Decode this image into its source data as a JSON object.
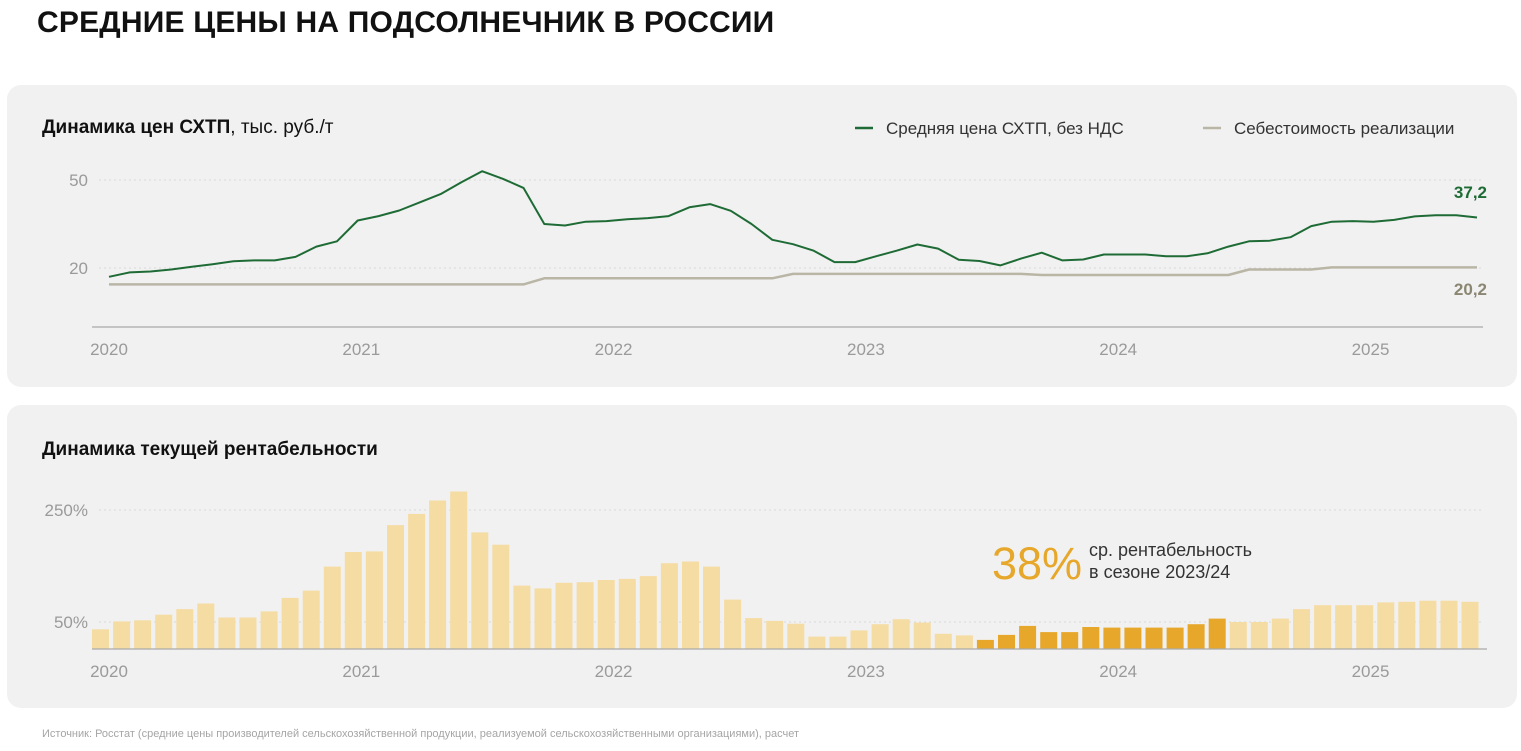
{
  "title": "СРЕДНИЕ ЦЕНЫ НА ПОДСОЛНЕЧНИК В РОССИИ",
  "source": "Источник: Росстат (средние цены производителей сельскохозяйственной продукции, реализуемой сельскохозяйственными организациями), расчет",
  "colors": {
    "price_line": "#1e6b35",
    "cost_line": "#b9b6a6",
    "bar_light": "#f5dca3",
    "bar_highlight": "#e6a72a",
    "axis": "#aaaaaa",
    "grid": "#d9d9d9",
    "tick_text": "#9a9a9a",
    "cost_label": "#8a8672"
  },
  "chart_data": [
    {
      "type": "line",
      "title": "Динамика цен СХТП",
      "title_unit": ", тыс. руб./т",
      "legend_position": "top-right",
      "x_range": [
        "2020-01",
        "2025-06"
      ],
      "ylim": [
        0,
        55
      ],
      "yticks": [
        "50",
        "20"
      ],
      "ytick_values": [
        50,
        20
      ],
      "xticks": [
        "2020",
        "2021",
        "2022",
        "2023",
        "2024",
        "2025"
      ],
      "end_labels": {
        "price": "37,2",
        "cost": "20,2"
      },
      "series": [
        {
          "name": "Средняя цена СХТП, без НДС",
          "key": "price",
          "points": [
            [
              "2020-01",
              17.0
            ],
            [
              "2020-02",
              18.5
            ],
            [
              "2020-03",
              18.8
            ],
            [
              "2020-04",
              19.5
            ],
            [
              "2020-05",
              20.4
            ],
            [
              "2020-06",
              21.3
            ],
            [
              "2020-07",
              22.3
            ],
            [
              "2020-08",
              22.6
            ],
            [
              "2020-09",
              22.6
            ],
            [
              "2020-10",
              23.8
            ],
            [
              "2020-11",
              27.3
            ],
            [
              "2020-12",
              29.1
            ],
            [
              "2021-01",
              36.2
            ],
            [
              "2021-02",
              37.7
            ],
            [
              "2021-03",
              39.6
            ],
            [
              "2021-04",
              42.4
            ],
            [
              "2021-05",
              45.2
            ],
            [
              "2021-06",
              49.2
            ],
            [
              "2021-07",
              53.0
            ],
            [
              "2021-08",
              50.4
            ],
            [
              "2021-09",
              47.3
            ],
            [
              "2021-10",
              35.0
            ],
            [
              "2021-11",
              34.5
            ],
            [
              "2021-12",
              35.8
            ],
            [
              "2022-01",
              36.0
            ],
            [
              "2022-02",
              36.6
            ],
            [
              "2022-03",
              37.0
            ],
            [
              "2022-04",
              37.7
            ],
            [
              "2022-05",
              40.7
            ],
            [
              "2022-06",
              41.8
            ],
            [
              "2022-07",
              39.5
            ],
            [
              "2022-08",
              35.0
            ],
            [
              "2022-09",
              29.6
            ],
            [
              "2022-10",
              28.1
            ],
            [
              "2022-11",
              25.9
            ],
            [
              "2022-12",
              22.0
            ],
            [
              "2023-01",
              22.0
            ],
            [
              "2023-02",
              24.0
            ],
            [
              "2023-03",
              25.9
            ],
            [
              "2023-04",
              28.0
            ],
            [
              "2023-05",
              26.6
            ],
            [
              "2023-06",
              22.8
            ],
            [
              "2023-07",
              22.4
            ],
            [
              "2023-08",
              20.9
            ],
            [
              "2023-09",
              23.2
            ],
            [
              "2023-10",
              25.2
            ],
            [
              "2023-11",
              22.6
            ],
            [
              "2023-12",
              22.9
            ],
            [
              "2024-01",
              24.6
            ],
            [
              "2024-02",
              24.6
            ],
            [
              "2024-03",
              24.6
            ],
            [
              "2024-04",
              24.0
            ],
            [
              "2024-05",
              24.0
            ],
            [
              "2024-06",
              25.0
            ],
            [
              "2024-07",
              27.3
            ],
            [
              "2024-08",
              29.1
            ],
            [
              "2024-09",
              29.3
            ],
            [
              "2024-10",
              30.5
            ],
            [
              "2024-11",
              34.3
            ],
            [
              "2024-12",
              35.8
            ],
            [
              "2025-01",
              36.0
            ],
            [
              "2025-02",
              35.8
            ],
            [
              "2025-03",
              36.4
            ],
            [
              "2025-04",
              37.6
            ],
            [
              "2025-05",
              38.0
            ],
            [
              "2025-06",
              38.0
            ],
            [
              "2025-07",
              37.2
            ]
          ]
        },
        {
          "name": "Себестоимость реализации",
          "key": "cost",
          "points": [
            [
              "2020-01",
              14.4
            ],
            [
              "2021-09",
              14.4
            ],
            [
              "2021-10",
              16.5
            ],
            [
              "2022-09",
              16.5
            ],
            [
              "2022-10",
              18.0
            ],
            [
              "2023-09",
              18.0
            ],
            [
              "2023-10",
              17.6
            ],
            [
              "2024-07",
              17.6
            ],
            [
              "2024-08",
              19.5
            ],
            [
              "2024-11",
              19.5
            ],
            [
              "2024-12",
              20.2
            ],
            [
              "2025-07",
              20.2
            ]
          ]
        }
      ]
    },
    {
      "type": "bar",
      "title": "Динамика текущей рентабельности",
      "x_range": [
        "2020-01",
        "2025-06"
      ],
      "yticks": [
        "250%",
        "50%"
      ],
      "ytick_values": [
        250,
        50
      ],
      "xticks": [
        "2020",
        "2021",
        "2022",
        "2023",
        "2024",
        "2025"
      ],
      "annotation": {
        "value": "38%",
        "line1": "ср. рентабельность",
        "line2": "в сезоне 2023/24"
      },
      "highlight_range": [
        "2023-07",
        "2024-06"
      ],
      "categories": [
        "2020-01",
        "2020-02",
        "2020-03",
        "2020-04",
        "2020-05",
        "2020-06",
        "2020-07",
        "2020-08",
        "2020-09",
        "2020-10",
        "2020-11",
        "2020-12",
        "2021-01",
        "2021-02",
        "2021-03",
        "2021-04",
        "2021-05",
        "2021-06",
        "2021-07",
        "2021-08",
        "2021-09",
        "2021-10",
        "2021-11",
        "2021-12",
        "2022-01",
        "2022-02",
        "2022-03",
        "2022-04",
        "2022-05",
        "2022-06",
        "2022-07",
        "2022-08",
        "2022-09",
        "2022-10",
        "2022-11",
        "2022-12",
        "2023-01",
        "2023-02",
        "2023-03",
        "2023-04",
        "2023-05",
        "2023-06",
        "2023-07",
        "2023-08",
        "2023-09",
        "2023-10",
        "2023-11",
        "2023-12",
        "2024-01",
        "2024-02",
        "2024-03",
        "2024-04",
        "2024-05",
        "2024-06",
        "2024-07",
        "2024-08",
        "2024-09",
        "2024-10",
        "2024-11",
        "2024-12",
        "2025-01",
        "2025-02",
        "2025-03",
        "2025-04",
        "2025-05",
        "2025-06"
      ],
      "values": [
        37,
        51,
        53,
        63,
        73,
        83,
        58,
        58,
        69,
        93,
        106,
        149,
        175,
        176,
        223,
        243,
        267,
        283,
        210,
        188,
        115,
        110,
        120,
        121,
        125,
        127,
        132,
        155,
        158,
        149,
        90,
        57,
        52,
        47,
        24,
        24,
        35,
        46,
        55,
        49,
        29,
        26,
        18,
        27,
        43,
        32,
        32,
        41,
        40,
        40,
        40,
        40,
        46,
        56,
        50,
        50,
        56,
        73,
        80,
        80,
        80,
        85,
        86,
        88,
        88,
        86
      ]
    }
  ]
}
